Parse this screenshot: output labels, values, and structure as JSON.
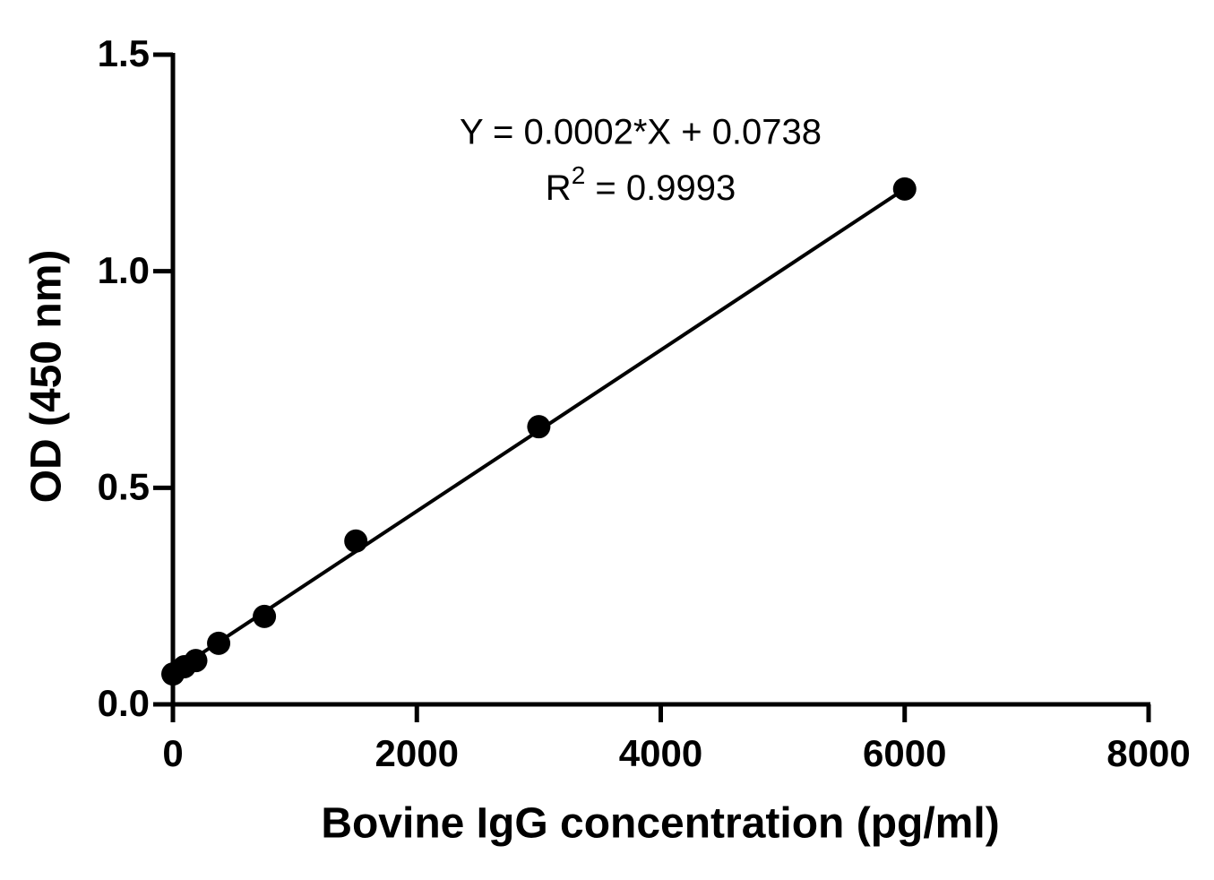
{
  "chart_data": {
    "type": "scatter",
    "x_label": "Bovine IgG concentration (pg/ml)",
    "y_label": "OD (450 nm)",
    "equation": "Y = 0.0002*X + 0.0738",
    "r_squared": {
      "base": "R",
      "sup": "2",
      "rest": " = 0.9993"
    },
    "x": [
      0,
      93.75,
      187.5,
      375,
      750,
      1500,
      3000,
      6000
    ],
    "values": [
      0.07,
      0.087,
      0.101,
      0.141,
      0.203,
      0.377,
      0.641,
      1.19
    ],
    "color": "#000000",
    "fit_line": {
      "x": [
        0,
        6000
      ],
      "values": [
        0.074,
        1.19
      ]
    },
    "xlim": [
      0,
      8000
    ],
    "xticks": [
      0,
      2000,
      4000,
      6000,
      8000
    ],
    "ylim": [
      0,
      1.5
    ],
    "yticks": [
      {
        "value": 0,
        "label": "0.0"
      },
      0.5,
      {
        "value": 1,
        "label": "1.0"
      },
      1.5
    ],
    "grid": false
  }
}
